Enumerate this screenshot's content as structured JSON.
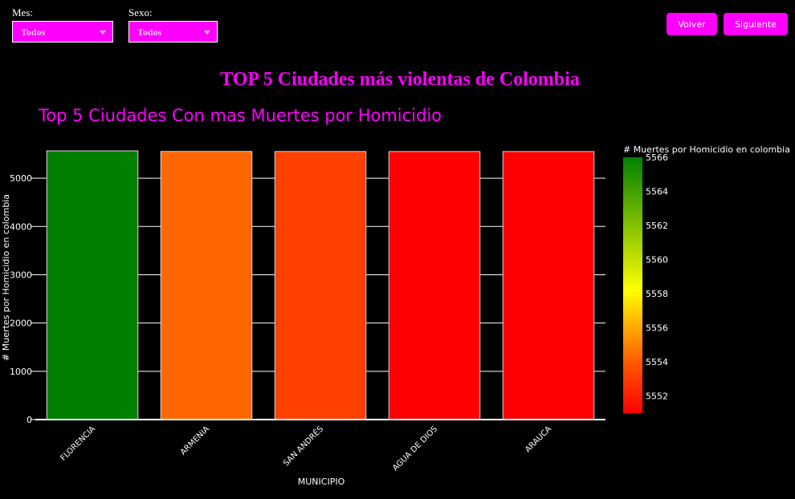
{
  "filters": [
    {
      "label": "Mes:",
      "value": "Todos"
    },
    {
      "label": "Sexo:",
      "value": "Todos"
    }
  ],
  "buttons": {
    "back": "Volver",
    "next": "Siguiente"
  },
  "page_title": "TOP 5 Ciudades más violentas de Colombia",
  "colors": {
    "accent": "#ff00ff",
    "background": "#000000"
  },
  "chart_data": {
    "type": "bar",
    "title": "Top 5 Ciudades Con mas Muertes por Homicidio",
    "xlabel": "MUNICIPIO",
    "ylabel": "# Muertes por Homicidio en colombia",
    "categories": [
      "FLORENCIA",
      "ARMENIA",
      "SAN ANDRÉS",
      "AGUA DE DIOS",
      "ARAUCA"
    ],
    "values": [
      5566,
      5553,
      5552,
      5551,
      5551
    ],
    "bar_colors": [
      "#008000",
      "#ff6600",
      "#ff4000",
      "#ff0000",
      "#ff0000"
    ],
    "ylim": [
      0,
      5566
    ],
    "yticks": [
      0,
      1000,
      2000,
      3000,
      4000,
      5000
    ],
    "grid": true,
    "colorbar": {
      "title": "# Muertes por Homicidio en colombia",
      "range": [
        5551,
        5566
      ],
      "ticks": [
        5552,
        5554,
        5556,
        5558,
        5560,
        5562,
        5564,
        5566
      ],
      "colors": [
        "#ff0000",
        "#ff6600",
        "#ffff00",
        "#008000"
      ]
    }
  }
}
